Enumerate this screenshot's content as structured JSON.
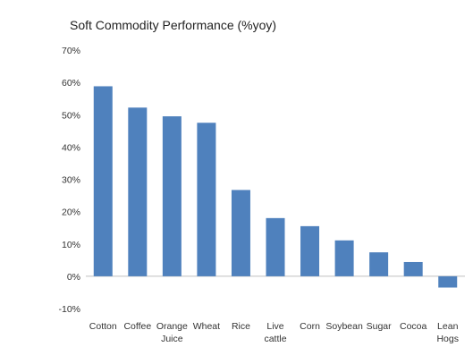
{
  "chart_data": {
    "type": "bar",
    "title": "Soft Commodity Performance (%yoy)",
    "categories": [
      "Cotton",
      "Coffee",
      "Orange Juice",
      "Wheat",
      "Rice",
      "Live cattle",
      "Corn",
      "Soybean",
      "Sugar",
      "Cocoa",
      "Lean Hogs"
    ],
    "category_lines": [
      [
        "Cotton"
      ],
      [
        "Coffee"
      ],
      [
        "Orange",
        "Juice"
      ],
      [
        "Wheat"
      ],
      [
        "Rice"
      ],
      [
        "Live",
        "cattle"
      ],
      [
        "Corn"
      ],
      [
        "Soybean"
      ],
      [
        "Sugar"
      ],
      [
        "Cocoa"
      ],
      [
        "Lean",
        "Hogs"
      ]
    ],
    "values": [
      58.8,
      52.2,
      49.5,
      47.5,
      26.7,
      18.0,
      15.5,
      11.1,
      7.4,
      4.4,
      -3.5
    ],
    "ylim": [
      -10,
      70
    ],
    "yticks": [
      -10,
      0,
      10,
      20,
      30,
      40,
      50,
      60,
      70
    ],
    "ytick_labels": [
      "-10%",
      "0%",
      "10%",
      "20%",
      "30%",
      "40%",
      "50%",
      "60%",
      "70%"
    ],
    "bar_color": "#4f81bd",
    "grid": false,
    "legend": "none"
  }
}
